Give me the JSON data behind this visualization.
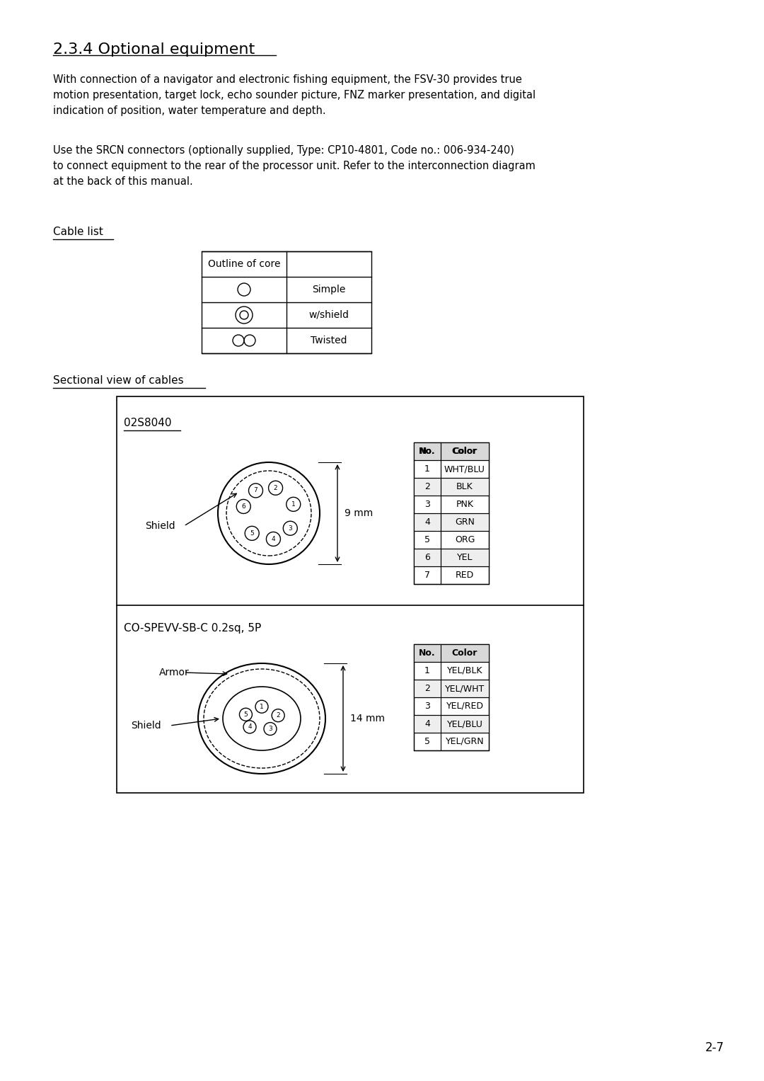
{
  "title": "2.3.4 Optional equipment",
  "title_font": 16,
  "para1": "With connection of a navigator and electronic fishing equipment, the FSV-30 provides true\nmotion presentation, target lock, echo sounder picture, FNZ marker presentation, and digital\nindication of position, water temperature and depth.",
  "para2": "Use the SRCN connectors (optionally supplied, Type: CP10-4801, Code no.: 006-934-240)\nto connect equipment to the rear of the processor unit. Refer to the interconnection diagram\nat the back of this manual.",
  "cable_list_label": "Cable list",
  "cable_table_header": "Outline of core",
  "cable_table_rows": [
    [
      "Simple"
    ],
    [
      "w/shield"
    ],
    [
      "Twisted"
    ]
  ],
  "sectional_label": "Sectional view of cables",
  "cable1_name": "02S8040",
  "cable1_diameter": "9 mm",
  "cable1_shield_label": "Shield",
  "cable1_colors": [
    "WHT/BLU",
    "BLK",
    "PNK",
    "GRN",
    "ORG",
    "YEL",
    "RED"
  ],
  "cable2_name": "CO-SPEVV-SB-C 0.2sq, 5P",
  "cable2_diameter": "14 mm",
  "cable2_shield_label": "Shield",
  "cable2_armor_label": "Armor",
  "cable2_colors": [
    "YEL/BLK",
    "YEL/WHT",
    "YEL/RED",
    "YEL/BLU",
    "YEL/GRN"
  ],
  "page_number": "2-7",
  "bg_color": "#ffffff",
  "text_color": "#000000",
  "font_family": "DejaVu Sans"
}
